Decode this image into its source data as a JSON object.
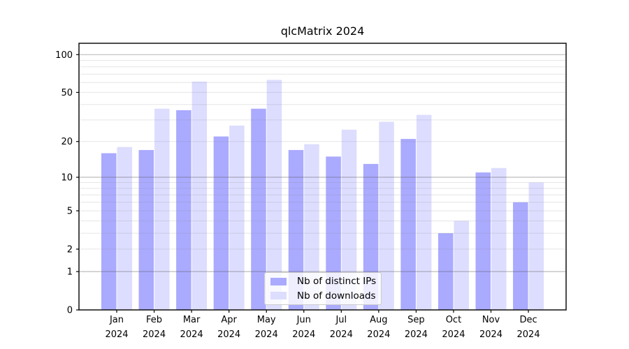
{
  "chart_data": {
    "type": "bar",
    "title": "qlcMatrix 2024",
    "categories": [
      "Jan 2024",
      "Feb 2024",
      "Mar 2024",
      "Apr 2024",
      "May 2024",
      "Jun 2024",
      "Jul 2024",
      "Aug 2024",
      "Sep 2024",
      "Oct 2024",
      "Nov 2024",
      "Dec 2024"
    ],
    "series": [
      {
        "name": "Nb of distinct IPs",
        "color": "#aaaaff",
        "values": [
          16,
          17,
          36,
          22,
          37,
          17,
          15,
          13,
          21,
          3,
          11,
          6
        ]
      },
      {
        "name": "Nb of downloads",
        "color": "#ddddff",
        "values": [
          18,
          37,
          61,
          27,
          63,
          19,
          25,
          29,
          33,
          4,
          12,
          9
        ]
      }
    ],
    "yscale": "log1p",
    "ylim": [
      0,
      123
    ],
    "yticks": [
      0,
      1,
      2,
      5,
      10,
      20,
      50,
      100
    ],
    "gridlines": {
      "major": [
        1,
        10,
        100
      ],
      "minor": [
        2,
        3,
        4,
        5,
        6,
        7,
        8,
        9,
        20,
        30,
        40,
        50,
        60,
        70,
        80,
        90
      ]
    },
    "legend_position": "lower center",
    "axis_color": "#000000",
    "grid_major_color": "rgba(90,90,90,0.45)",
    "grid_minor_color": "rgba(140,140,140,0.22)",
    "text_color": "#000000"
  }
}
